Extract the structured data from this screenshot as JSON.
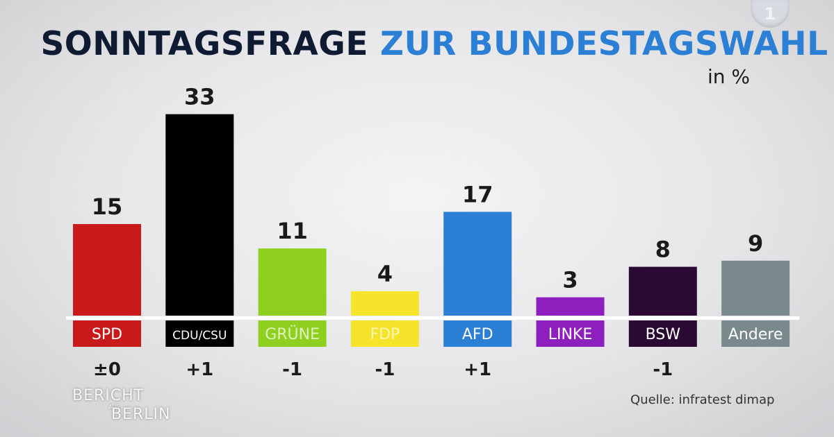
{
  "title_part1": "SONNTAGSFRAGE",
  "title_part2": "ZUR BUNDESTAGSWAHL",
  "unit": "in %",
  "logo_text": "1",
  "show_name": {
    "line1": "BERICHT",
    "line2": "AUS",
    "line3": "BERLIN"
  },
  "source": "Quelle: infratest dimap",
  "colors": {
    "title_dark": "#0f1b33",
    "title_blue": "#2b7fd4"
  },
  "chart_data": {
    "type": "bar",
    "title": "SONNTAGSFRAGE ZUR BUNDESTAGSWAHL",
    "ylabel": "in %",
    "ylim": [
      0,
      35
    ],
    "categories": [
      "SPD",
      "CDU/CSU",
      "GRÜNE",
      "FDP",
      "AFD",
      "LINKE",
      "BSW",
      "Andere"
    ],
    "values": [
      15,
      33,
      11,
      4,
      17,
      3,
      8,
      9
    ],
    "value_labels": [
      "15",
      "33",
      "11",
      "4",
      "17",
      "3",
      "8",
      "9"
    ],
    "changes": [
      "±0",
      "+1",
      "-1",
      "-1",
      "+1",
      "",
      "-1",
      ""
    ],
    "colors": [
      "#c8191b",
      "#000000",
      "#8fcf1f",
      "#f5e42a",
      "#2b7fd4",
      "#8d1fbf",
      "#2a0a33",
      "#7a8a8c"
    ],
    "label_text_colors": [
      "#ffffff",
      "#ffffff",
      "#dff0bf",
      "#fdf6b0",
      "#ffffff",
      "#ffffff",
      "#ffffff",
      "#ffffff"
    ]
  }
}
